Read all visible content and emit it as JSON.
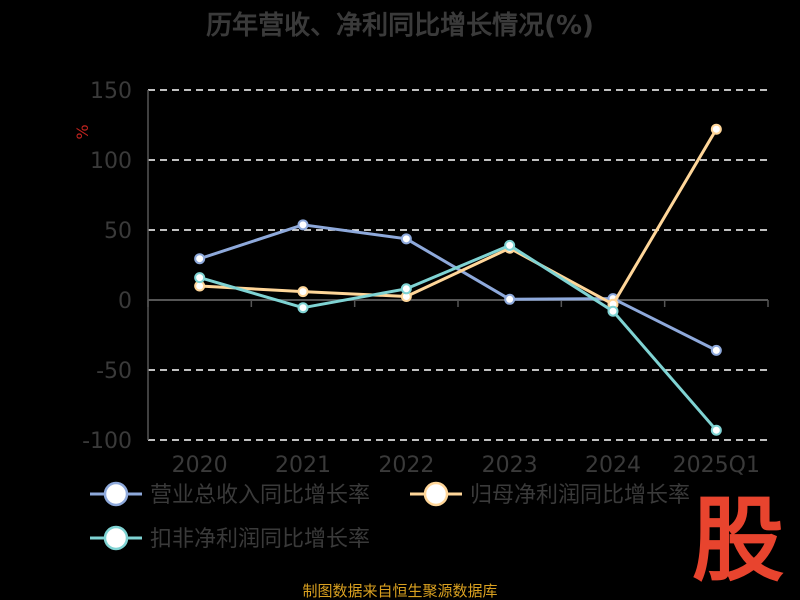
{
  "page": {
    "title": "历年营收、净利同比增长情况(%)",
    "source": "制图数据来自恒生聚源数据库",
    "logo_text": "股"
  },
  "colors": {
    "background": "#000000",
    "grid": "#ffffff",
    "axis": "#555555",
    "text": "#3a3a3a",
    "unit": "#c0241f",
    "source": "#d9a020",
    "logo": "#e8442e"
  },
  "chart_data": {
    "type": "line",
    "title": "历年营收、净利同比增长情况(%)",
    "ylabel": "%",
    "xlabel": "",
    "categories": [
      "2020",
      "2021",
      "2022",
      "2023",
      "2024",
      "2025Q1"
    ],
    "ylim": [
      -100,
      150
    ],
    "yticks": [
      150,
      100,
      50,
      0,
      -50,
      -100
    ],
    "grid": true,
    "legend_position": "bottom-left",
    "series": [
      {
        "name": "营业总收入同比增长率",
        "color": "#8ea9db",
        "values": [
          29.5,
          53.7,
          43.7,
          0.5,
          1.0,
          -36.0
        ]
      },
      {
        "name": "归母净利润同比增长率",
        "color": "#ffd699",
        "values": [
          10.0,
          6.0,
          2.5,
          37.0,
          -3.0,
          122.0
        ]
      },
      {
        "name": "扣非净利润同比增长率",
        "color": "#7fd3d3",
        "values": [
          16.0,
          -5.5,
          8.0,
          39.0,
          -8.0,
          -93.0
        ]
      }
    ]
  }
}
